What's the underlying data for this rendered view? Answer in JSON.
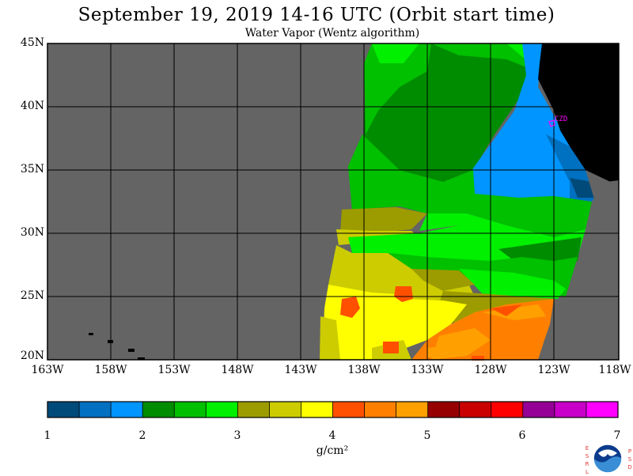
{
  "title": "September 19, 2019  14-16 UTC  (Orbit start time)",
  "subtitle": "Water Vapor (Wentz algorithm)",
  "lat_labels": [
    "45N",
    "40N",
    "35N",
    "30N",
    "25N",
    "20N"
  ],
  "lon_labels": [
    "163W",
    "158W",
    "153W",
    "148W",
    "143W",
    "138W",
    "133W",
    "128W",
    "123W",
    "118W"
  ],
  "station_label": "CZD",
  "colorbar": {
    "ticks": [
      "1",
      "2",
      "3",
      "4",
      "5",
      "6",
      "7"
    ],
    "units": "g/cm²",
    "colors": [
      "#004a7a",
      "#0070c0",
      "#0095ff",
      "#008c00",
      "#00c000",
      "#00f000",
      "#9c9c00",
      "#cccc00",
      "#ffff00",
      "#ff5000",
      "#ff8000",
      "#ffa000",
      "#960000",
      "#c80000",
      "#ff0000",
      "#960096",
      "#c800c8",
      "#ff00ff"
    ]
  },
  "logo": {
    "left_text": "ESRL",
    "right_text": "PSD",
    "icon": "noaa-logo"
  },
  "colors": {
    "no_data": "#646464",
    "land": "#000000",
    "grid": "#000000"
  }
}
